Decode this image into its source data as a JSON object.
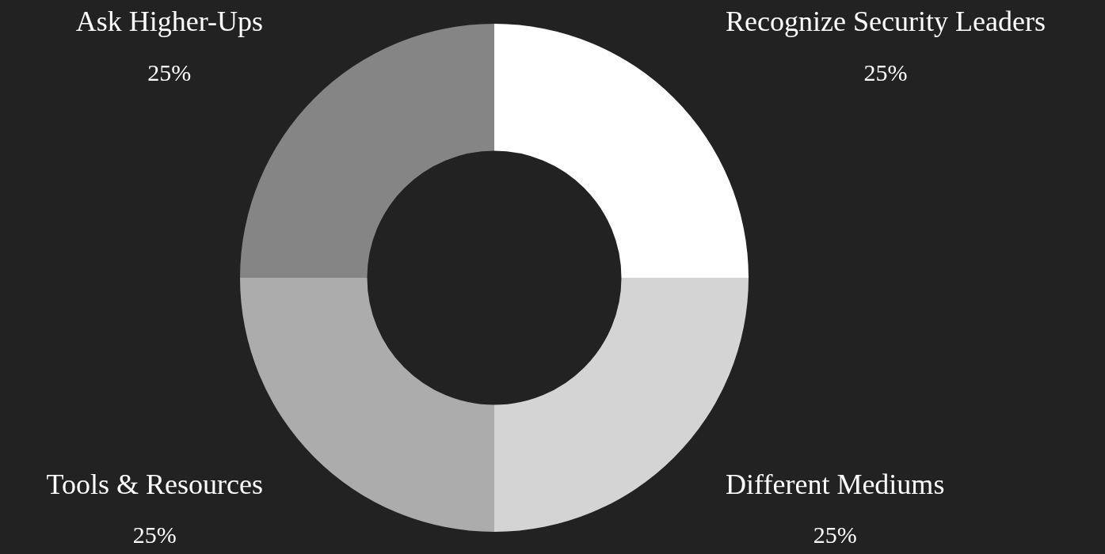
{
  "chart_data": {
    "type": "donut",
    "categories": [
      "Recognize Security Leaders",
      "Different Mediums",
      "Tools & Resources",
      "Ask Higher-Ups"
    ],
    "values": [
      25,
      25,
      25,
      25
    ],
    "value_labels": [
      "25%",
      "25%",
      "25%",
      "25%"
    ],
    "colors": [
      "#ffffff",
      "#d4d4d4",
      "#acacac",
      "#858585"
    ],
    "legend": false
  }
}
